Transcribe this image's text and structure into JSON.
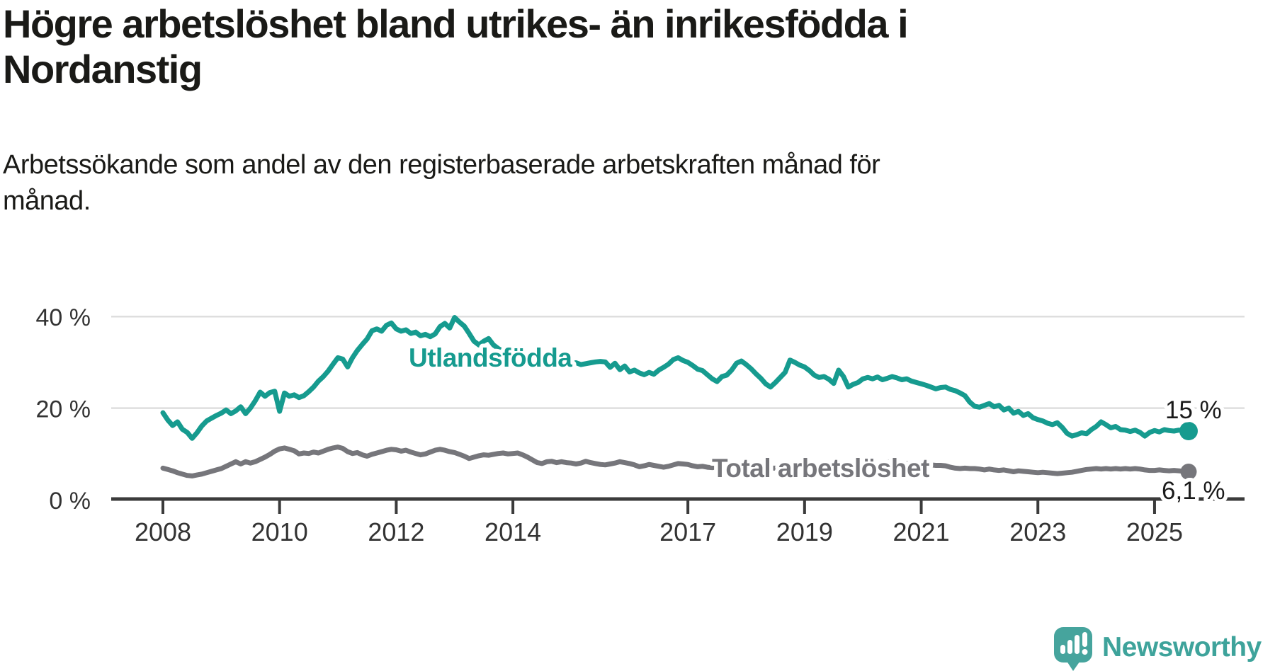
{
  "header": {
    "title_lines": [
      "Högre arbetslöshet bland utrikes- än inrikesfödda i",
      "Nordanstig"
    ],
    "subtitle_lines": [
      "Arbetssökande som andel av den registerbaserade arbetskraften månad för",
      "månad."
    ]
  },
  "chart_data": {
    "type": "line",
    "title": "Högre arbetslöshet bland utrikes- än inrikesfödda i Nordanstig",
    "subtitle": "Arbetssökande som andel av den registerbaserade arbetskraften månad för månad.",
    "frequency": "monthly",
    "x_start": "2008-01",
    "x_end": "2025-08",
    "ylim": [
      0,
      43
    ],
    "grid": "horizontal",
    "yticks": [
      {
        "label": "40 %",
        "value": 40
      },
      {
        "label": "20 %",
        "value": 20
      },
      {
        "label": "0 %",
        "value": 0
      }
    ],
    "xticks": [
      {
        "label": "2008",
        "year": 2008
      },
      {
        "label": "2010",
        "year": 2010
      },
      {
        "label": "2012",
        "year": 2012
      },
      {
        "label": "2014",
        "year": 2014
      },
      {
        "label": "2017",
        "year": 2017
      },
      {
        "label": "2019",
        "year": 2019
      },
      {
        "label": "2021",
        "year": 2021
      },
      {
        "label": "2023",
        "year": 2023
      },
      {
        "label": "2025",
        "year": 2025
      }
    ],
    "series": [
      {
        "name": "Utlandsfödda",
        "color": "#169b8f",
        "end_label": "15 %",
        "values": [
          19.0,
          17.4,
          16.2,
          17.0,
          15.4,
          14.7,
          13.4,
          14.6,
          16.1,
          17.2,
          17.8,
          18.4,
          18.9,
          19.6,
          18.8,
          19.4,
          20.3,
          18.8,
          20.0,
          21.6,
          23.5,
          22.6,
          23.4,
          23.7,
          19.3,
          23.3,
          22.6,
          22.9,
          22.3,
          22.7,
          23.6,
          24.6,
          25.9,
          26.9,
          28.1,
          29.6,
          31.0,
          30.7,
          29.0,
          31.0,
          32.6,
          33.9,
          35.1,
          36.9,
          37.3,
          36.8,
          38.1,
          38.6,
          37.3,
          36.8,
          37.1,
          36.3,
          36.6,
          35.8,
          36.1,
          35.6,
          36.2,
          37.8,
          38.5,
          37.5,
          39.8,
          38.8,
          37.9,
          36.3,
          34.6,
          33.8,
          34.6,
          35.2,
          33.8,
          33.0,
          32.4,
          32.0,
          31.6,
          31.4,
          31.1,
          30.8,
          30.5,
          30.2,
          30.0,
          29.8,
          29.7,
          29.6,
          29.5,
          29.6,
          29.7,
          29.9,
          29.5,
          29.7,
          29.9,
          30.1,
          30.2,
          30.1,
          28.9,
          29.8,
          28.4,
          29.2,
          27.9,
          28.3,
          27.7,
          27.3,
          27.8,
          27.4,
          28.3,
          28.9,
          29.6,
          30.6,
          31.0,
          30.4,
          30.0,
          29.3,
          28.5,
          28.2,
          27.3,
          26.4,
          25.8,
          26.9,
          27.2,
          28.3,
          29.8,
          30.3,
          29.5,
          28.6,
          27.5,
          26.5,
          25.3,
          24.6,
          25.6,
          26.7,
          27.8,
          30.5,
          30.0,
          29.4,
          29.0,
          28.2,
          27.2,
          26.7,
          26.9,
          26.3,
          25.4,
          28.3,
          26.9,
          24.6,
          25.2,
          25.6,
          26.4,
          26.7,
          26.4,
          26.8,
          26.2,
          26.5,
          26.9,
          26.6,
          26.2,
          26.4,
          25.9,
          25.6,
          25.3,
          25.0,
          24.6,
          24.2,
          24.5,
          24.6,
          24.1,
          23.8,
          23.3,
          22.7,
          21.3,
          20.4,
          20.2,
          20.6,
          21.0,
          20.3,
          20.6,
          19.6,
          20.0,
          18.9,
          19.3,
          18.4,
          18.8,
          17.9,
          17.5,
          17.2,
          16.7,
          16.4,
          16.8,
          15.8,
          14.5,
          13.9,
          14.2,
          14.6,
          14.4,
          15.3,
          16.0,
          17.0,
          16.4,
          15.7,
          16.0,
          15.3,
          15.2,
          14.9,
          15.2,
          14.7,
          13.9,
          14.7,
          15.1,
          14.8,
          15.3,
          15.1,
          15.0,
          15.2,
          15.1,
          15.0
        ]
      },
      {
        "name": "Total arbetslöshet",
        "color": "#76767b",
        "end_label": "6,1 %",
        "values": [
          6.9,
          6.6,
          6.3,
          5.9,
          5.6,
          5.3,
          5.2,
          5.4,
          5.6,
          5.9,
          6.2,
          6.5,
          6.8,
          7.3,
          7.8,
          8.3,
          7.8,
          8.3,
          8.0,
          8.3,
          8.8,
          9.3,
          9.9,
          10.6,
          11.1,
          11.3,
          11.0,
          10.7,
          10.0,
          10.2,
          10.1,
          10.4,
          10.2,
          10.6,
          11.0,
          11.3,
          11.5,
          11.2,
          10.5,
          10.1,
          10.3,
          9.8,
          9.5,
          9.9,
          10.2,
          10.5,
          10.8,
          11.0,
          10.9,
          10.6,
          10.8,
          10.4,
          10.1,
          9.8,
          10.0,
          10.4,
          10.8,
          11.0,
          10.8,
          10.5,
          10.3,
          9.9,
          9.5,
          9.0,
          9.3,
          9.6,
          9.8,
          9.7,
          9.9,
          10.1,
          10.2,
          10.0,
          10.1,
          10.2,
          9.8,
          9.3,
          8.7,
          8.1,
          7.9,
          8.3,
          8.4,
          8.1,
          8.3,
          8.1,
          8.0,
          7.8,
          8.0,
          8.4,
          8.1,
          7.9,
          7.7,
          7.6,
          7.8,
          8.0,
          8.3,
          8.1,
          7.9,
          7.6,
          7.2,
          7.4,
          7.7,
          7.5,
          7.3,
          7.1,
          7.3,
          7.6,
          7.9,
          7.8,
          7.7,
          7.4,
          7.2,
          7.3,
          7.1,
          7.0,
          7.2,
          7.1,
          7.3,
          7.4,
          7.3,
          7.2,
          7.2,
          7.1,
          7.0,
          7.0,
          6.9,
          6.9,
          6.9,
          6.9,
          7.0,
          7.0,
          6.9,
          6.9,
          6.9,
          6.8,
          6.7,
          6.7,
          6.8,
          6.8,
          6.9,
          7.0,
          7.0,
          7.1,
          7.1,
          7.2,
          7.2,
          7.4,
          7.6,
          7.8,
          8.1,
          8.2,
          8.1,
          8.0,
          7.9,
          7.9,
          7.8,
          7.8,
          7.8,
          7.7,
          7.6,
          7.5,
          7.5,
          7.4,
          7.1,
          6.9,
          6.8,
          6.9,
          6.8,
          6.8,
          6.7,
          6.5,
          6.7,
          6.5,
          6.4,
          6.5,
          6.3,
          6.1,
          6.3,
          6.2,
          6.1,
          6.0,
          5.9,
          6.0,
          5.9,
          5.8,
          5.7,
          5.8,
          5.9,
          6.0,
          6.2,
          6.4,
          6.6,
          6.7,
          6.8,
          6.7,
          6.8,
          6.7,
          6.8,
          6.7,
          6.8,
          6.7,
          6.8,
          6.7,
          6.5,
          6.4,
          6.4,
          6.5,
          6.4,
          6.3,
          6.4,
          6.3,
          6.2,
          6.1
        ]
      }
    ],
    "colors": {
      "accent_teal": "#169b8f",
      "line_gray": "#76767b",
      "grid": "#dedede",
      "axis": "#3b3b3b",
      "text": "#1a1a17"
    }
  },
  "logo": {
    "text": "Newsworthy",
    "icon": "newsworthy-speech-bubble-bars-icon",
    "color": "#3ea39b"
  }
}
